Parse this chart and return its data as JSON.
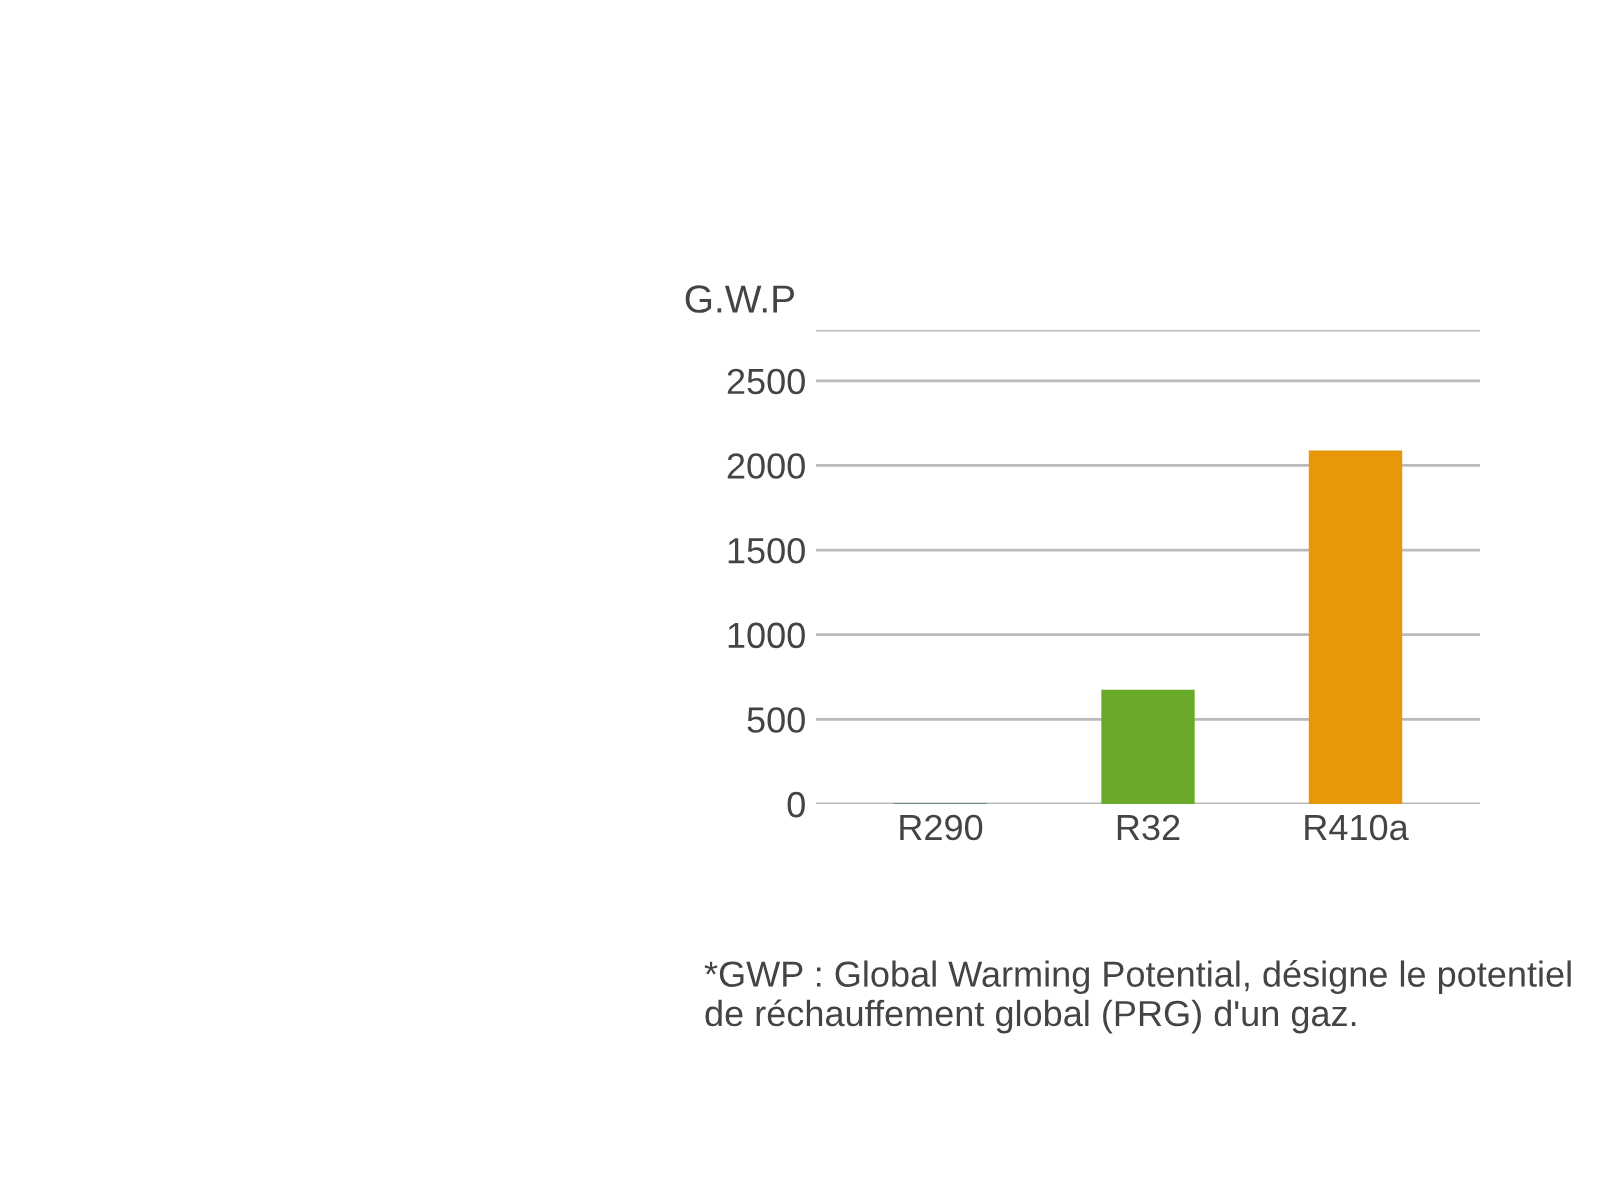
{
  "chart_data": {
    "type": "bar",
    "ylabel": "G.W.P",
    "categories": [
      "R290",
      "R32",
      "R410a"
    ],
    "values": [
      3,
      675,
      2088
    ],
    "colors": [
      "#0b6b3a",
      "#6aaa2a",
      "#e8960a"
    ],
    "ylim": [
      0,
      2800
    ],
    "yticks": [
      0,
      500,
      1000,
      1500,
      2000,
      2500,
      {
        "value": 2800,
        "label": null
      }
    ],
    "grid": "y",
    "annotations": [
      "*GWP : Global Warming Potential, désigne le potentiel de réchauffement global (PRG) d'un gaz."
    ]
  }
}
